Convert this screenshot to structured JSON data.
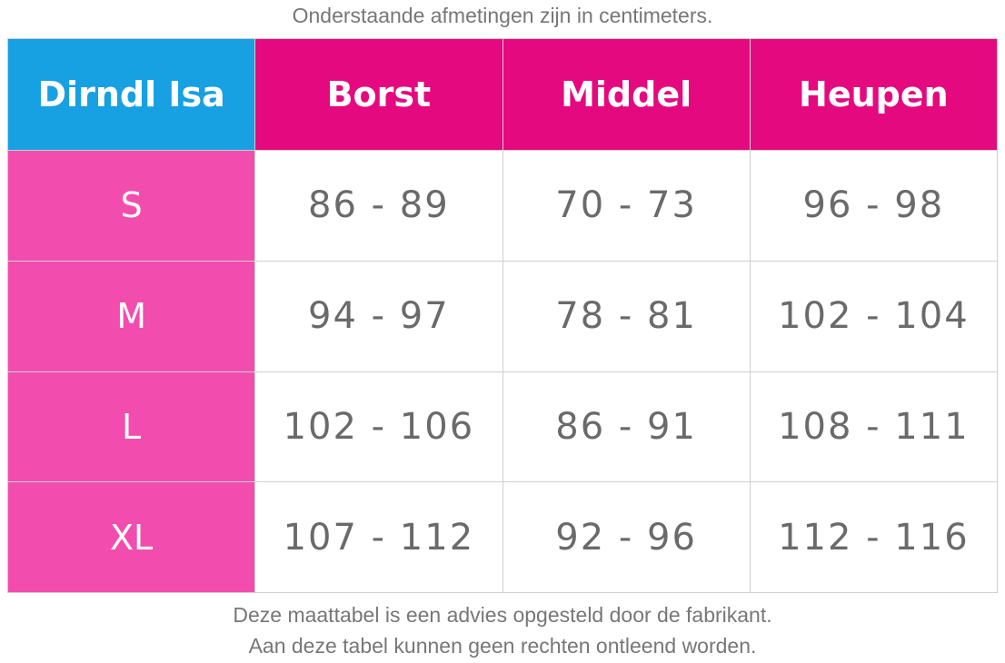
{
  "caption_top": "Onderstaande afmetingen zijn in centimeters.",
  "table": {
    "header": [
      "Dirndl Isa",
      "Borst",
      "Middel",
      "Heupen"
    ],
    "rows": [
      [
        "S",
        "86 - 89",
        "70 - 73",
        "96 - 98"
      ],
      [
        "M",
        "94 - 97",
        "78 - 81",
        "102 - 104"
      ],
      [
        "L",
        "102 - 106",
        "86 - 91",
        "108 - 111"
      ],
      [
        "XL",
        "107 - 112",
        "92 - 96",
        "112 - 116"
      ]
    ]
  },
  "footer": [
    "Deze maattabel is een advies opgesteld door de fabrikant.",
    "Aan deze tabel kunnen geen rechten ontleend worden."
  ]
}
